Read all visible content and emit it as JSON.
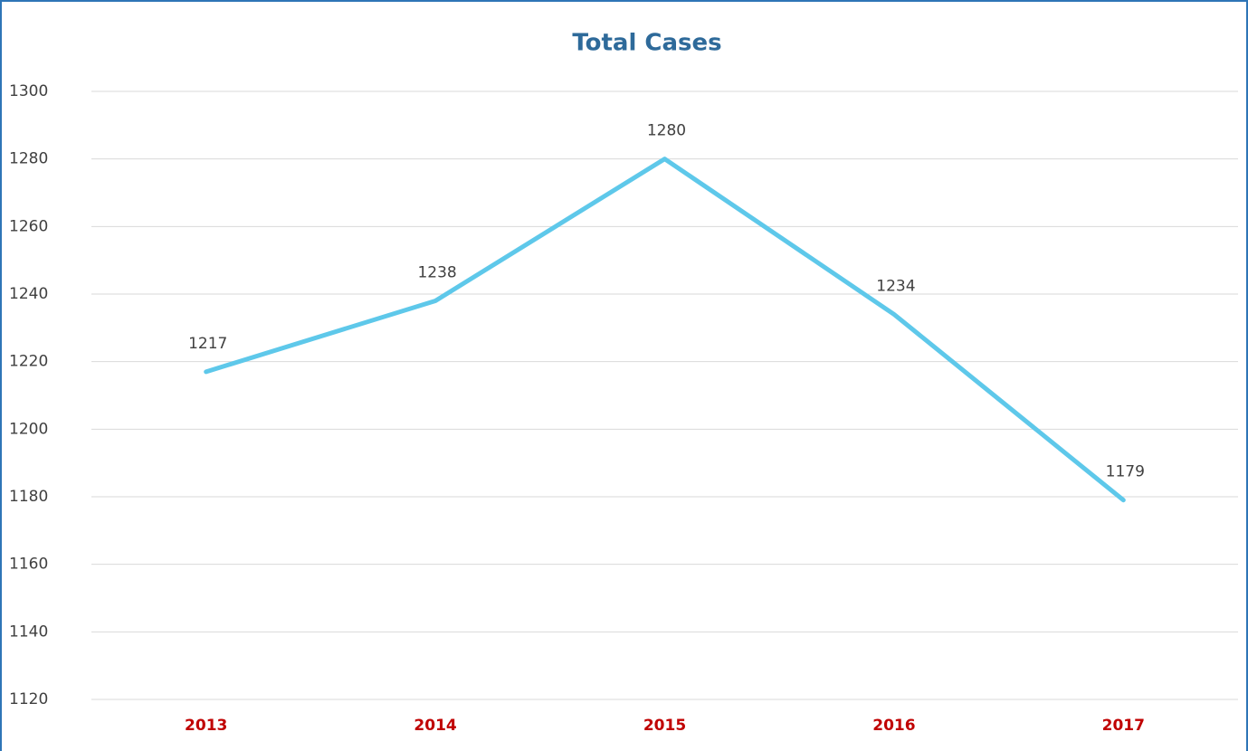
{
  "chart_data": {
    "type": "line",
    "title": "Total Cases",
    "categories": [
      "2013",
      "2014",
      "2015",
      "2016",
      "2017"
    ],
    "values": [
      1217,
      1238,
      1280,
      1234,
      1179
    ],
    "color": "#5ec8ea",
    "ylim": [
      1120,
      1300
    ],
    "yticks": [
      1120,
      1140,
      1160,
      1180,
      1200,
      1220,
      1240,
      1260,
      1280,
      1300
    ],
    "grid": true
  }
}
